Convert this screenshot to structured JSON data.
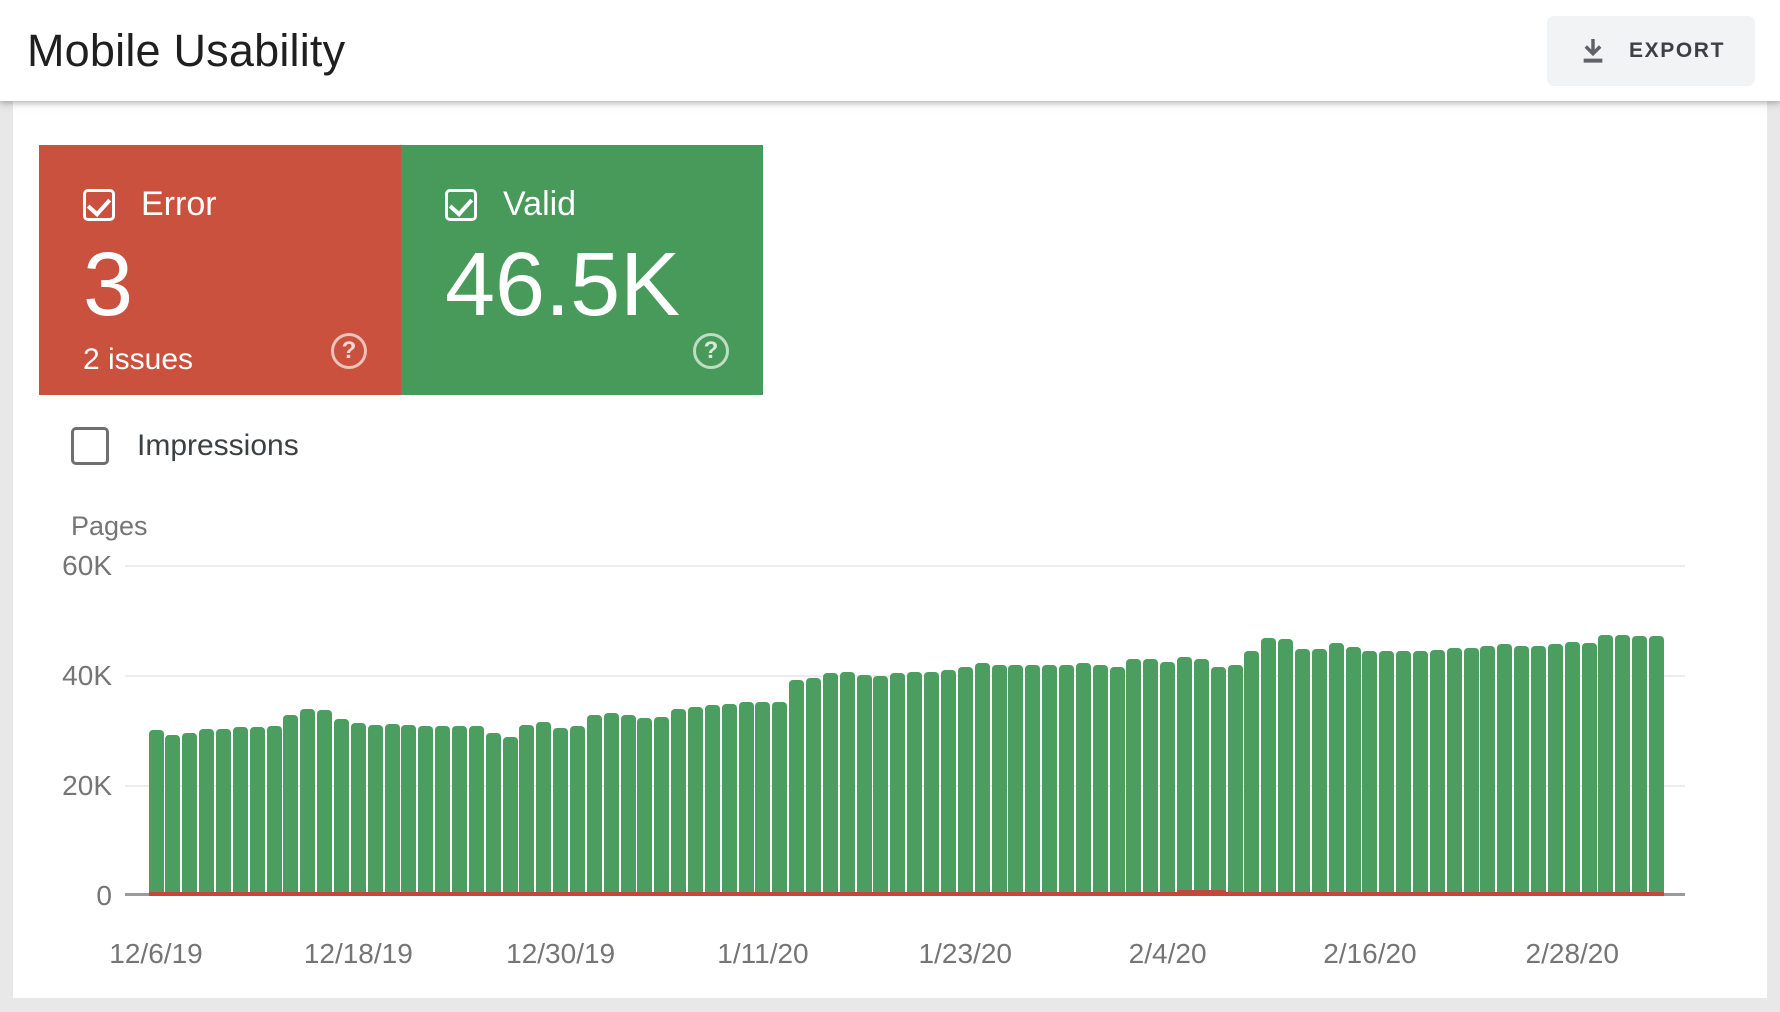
{
  "header": {
    "title": "Mobile Usability",
    "export_label": "EXPORT"
  },
  "summary_cards": {
    "error": {
      "label": "Error",
      "value": "3",
      "sub": "2 issues",
      "checked": true,
      "color": "#c9513e"
    },
    "valid": {
      "label": "Valid",
      "value": "46.5K",
      "checked": true,
      "color": "#489a5a"
    }
  },
  "impressions_toggle": {
    "label": "Impressions",
    "checked": false
  },
  "chart_data": {
    "type": "bar",
    "title": "",
    "ylabel": "Pages",
    "xlabel": "",
    "ylim": [
      0,
      60000
    ],
    "units": "thousands of pages",
    "grid": "horizontal",
    "y_ticks": [
      "60K",
      "40K",
      "20K",
      "0"
    ],
    "x_tick_labels": [
      "12/6/19",
      "12/18/19",
      "12/30/19",
      "1/11/20",
      "1/23/20",
      "2/4/20",
      "2/16/20",
      "2/28/20"
    ],
    "x_tick_day_indices": [
      0,
      12,
      24,
      36,
      48,
      60,
      72,
      84
    ],
    "start_date": "12/6/19",
    "end_date": "3/4/20",
    "days": 90,
    "series": [
      {
        "name": "Valid",
        "color": "#4c9e60",
        "values_k": [
          29.5,
          28.6,
          29.0,
          29.7,
          29.7,
          30.0,
          30.0,
          30.2,
          32.2,
          33.2,
          33.1,
          31.5,
          30.8,
          30.4,
          30.5,
          30.3,
          30.1,
          30.1,
          30.2,
          30.2,
          28.9,
          28.1,
          30.4,
          30.9,
          29.9,
          30.1,
          32.2,
          32.5,
          32.1,
          31.7,
          31.9,
          33.2,
          33.6,
          34.0,
          34.1,
          34.5,
          34.6,
          34.6,
          38.5,
          39.0,
          39.8,
          40.0,
          39.4,
          39.3,
          39.8,
          40.0,
          40.0,
          40.3,
          40.9,
          41.6,
          41.3,
          41.2,
          41.3,
          41.3,
          41.2,
          41.6,
          41.3,
          40.9,
          42.4,
          42.4,
          41.9,
          42.7,
          42.4,
          41.0,
          41.3,
          43.9,
          46.1,
          46.0,
          44.2,
          44.2,
          45.3,
          44.5,
          43.9,
          43.9,
          43.9,
          43.9,
          44.0,
          44.3,
          44.3,
          44.8,
          45.1,
          44.7,
          44.7,
          45.1,
          45.4,
          45.3,
          46.8,
          46.8,
          46.6,
          46.5
        ]
      },
      {
        "name": "Error",
        "color": "#c5473a",
        "approx_constant_value": 3,
        "note": "flat line along baseline; slight visible bump near 2/6/20",
        "bump_day_indices": [
          61,
          63
        ]
      }
    ],
    "legend_position": "none"
  }
}
